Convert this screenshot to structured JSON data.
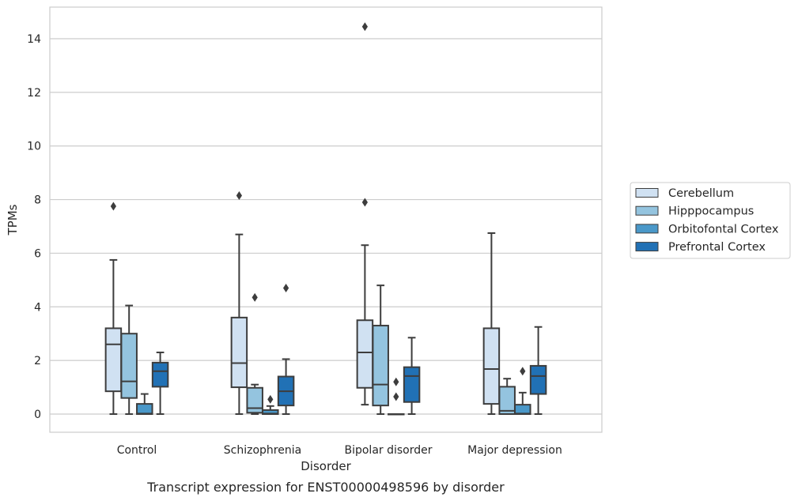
{
  "chart_data": {
    "type": "box",
    "xlabel": "Disorder",
    "ylabel": "TPMs",
    "caption": "Transcript expression for ENST00000498596 by disorder",
    "ylim": [
      -0.7,
      15.2
    ],
    "yticks": [
      "0",
      "2",
      "4",
      "6",
      "8",
      "10",
      "12",
      "14"
    ],
    "grid": "horizontal",
    "legend_position": "right",
    "categories": [
      "Control",
      "Schizophrenia",
      "Bipolar disorder",
      "Major depression"
    ],
    "series": [
      {
        "name": "Cerebellum",
        "color": "#d0e1f2",
        "boxes": [
          {
            "whislo": 0,
            "q1": 0.85,
            "med": 2.6,
            "q3": 3.2,
            "whishi": 5.75,
            "fliers": [
              7.75
            ]
          },
          {
            "whislo": 0,
            "q1": 1.0,
            "med": 1.9,
            "q3": 3.6,
            "whishi": 6.7,
            "fliers": [
              8.15
            ]
          },
          {
            "whislo": 0.35,
            "q1": 0.98,
            "med": 2.3,
            "q3": 3.5,
            "whishi": 6.3,
            "fliers": [
              7.9,
              14.45
            ]
          },
          {
            "whislo": 0,
            "q1": 0.38,
            "med": 1.68,
            "q3": 3.2,
            "whishi": 6.75,
            "fliers": []
          }
        ]
      },
      {
        "name": "Hipppocampus",
        "color": "#94c4df",
        "boxes": [
          {
            "whislo": 0,
            "q1": 0.6,
            "med": 1.22,
            "q3": 3.0,
            "whishi": 4.05,
            "fliers": []
          },
          {
            "whislo": 0,
            "q1": 0.05,
            "med": 0.22,
            "q3": 0.98,
            "whishi": 1.1,
            "fliers": [
              4.35
            ]
          },
          {
            "whislo": 0,
            "q1": 0.32,
            "med": 1.1,
            "q3": 3.3,
            "whishi": 4.8,
            "fliers": []
          },
          {
            "whislo": 0,
            "q1": 0.0,
            "med": 0.12,
            "q3": 1.02,
            "whishi": 1.32,
            "fliers": []
          }
        ]
      },
      {
        "name": "Orbitofontal Cortex",
        "color": "#4a98c9",
        "boxes": [
          {
            "whislo": 0,
            "q1": 0.0,
            "med": 0.02,
            "q3": 0.38,
            "whishi": 0.75,
            "fliers": []
          },
          {
            "whislo": 0,
            "q1": 0.0,
            "med": 0.02,
            "q3": 0.15,
            "whishi": 0.3,
            "fliers": [
              0.55
            ]
          },
          {
            "whislo": 0,
            "q1": 0.0,
            "med": 0.0,
            "q3": 0.0,
            "whishi": 0.0,
            "fliers": [
              0.65,
              1.2
            ]
          },
          {
            "whislo": 0,
            "q1": 0.0,
            "med": 0.02,
            "q3": 0.35,
            "whishi": 0.8,
            "fliers": [
              1.6
            ]
          }
        ]
      },
      {
        "name": "Prefrontal Cortex",
        "color": "#2171b5",
        "boxes": [
          {
            "whislo": 0,
            "q1": 1.02,
            "med": 1.6,
            "q3": 1.92,
            "whishi": 2.3,
            "fliers": []
          },
          {
            "whislo": 0,
            "q1": 0.32,
            "med": 0.85,
            "q3": 1.4,
            "whishi": 2.05,
            "fliers": [
              4.7
            ]
          },
          {
            "whislo": 0,
            "q1": 0.45,
            "med": 1.42,
            "q3": 1.75,
            "whishi": 2.85,
            "fliers": []
          },
          {
            "whislo": 0,
            "q1": 0.75,
            "med": 1.42,
            "q3": 1.8,
            "whishi": 3.25,
            "fliers": []
          }
        ]
      }
    ]
  }
}
